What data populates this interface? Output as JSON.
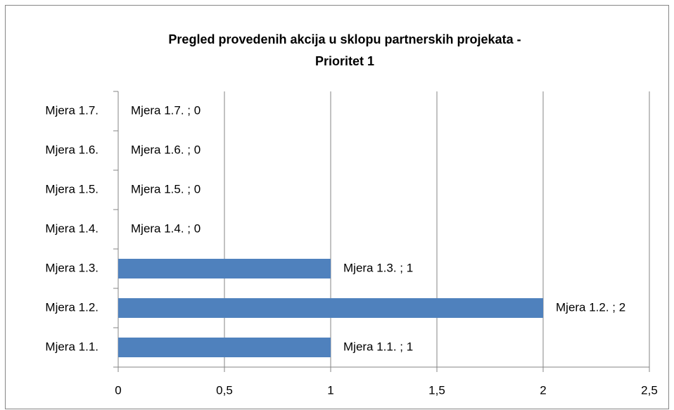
{
  "chart_data": {
    "type": "barh",
    "title": [
      "Pregled provedenih akcija u sklopu partnerskih projekata -",
      "Prioritet 1"
    ],
    "categories": [
      "Mjera 1.1.",
      "Mjera 1.2.",
      "Mjera 1.3.",
      "Mjera 1.4.",
      "Mjera 1.5.",
      "Mjera 1.6.",
      "Mjera 1.7."
    ],
    "values": [
      1,
      2,
      1,
      0,
      0,
      0,
      0
    ],
    "value_labels": [
      "Mjera 1.1. ; 1",
      "Mjera 1.2. ; 2",
      "Mjera 1.3. ; 1",
      "Mjera 1.4. ; 0",
      "Mjera 1.5. ; 0",
      "Mjera 1.6. ; 0",
      "Mjera 1.7. ; 0"
    ],
    "color": "#4f81bd",
    "xlim": [
      0,
      2.5
    ],
    "xticks": [
      0,
      {
        "value": 0.5,
        "label": "0,5"
      },
      1,
      {
        "value": 1.5,
        "label": "1,5"
      },
      2,
      {
        "value": 2.5,
        "label": "2,5"
      }
    ],
    "grid": true
  }
}
